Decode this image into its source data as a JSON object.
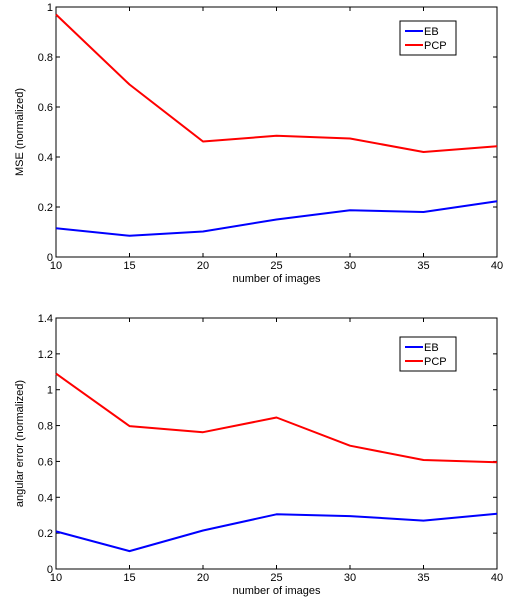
{
  "chart_data": [
    {
      "type": "line",
      "x": [
        10,
        15,
        20,
        25,
        30,
        35,
        40
      ],
      "xlabel": "number of images",
      "ylabel": "MSE (normalized)",
      "xlim": [
        10,
        40
      ],
      "ylim": [
        0,
        1
      ],
      "xticks": [
        "10",
        "15",
        "20",
        "25",
        "30",
        "35",
        "40"
      ],
      "yticks": [
        "0",
        "0.2",
        "0.4",
        "0.6",
        "0.8",
        "1"
      ],
      "grid": false,
      "legend_position": "top-right",
      "series": [
        {
          "name": "EB",
          "color": "#0000ff",
          "values": [
            0.115,
            0.085,
            0.102,
            0.15,
            0.187,
            0.18,
            0.223
          ]
        },
        {
          "name": "PCP",
          "color": "#ff0000",
          "values": [
            0.97,
            0.69,
            0.462,
            0.485,
            0.474,
            0.42,
            0.443
          ]
        }
      ]
    },
    {
      "type": "line",
      "x": [
        10,
        15,
        20,
        25,
        30,
        35,
        40
      ],
      "xlabel": "number of images",
      "ylabel": "angular error (normalized)",
      "xlim": [
        10,
        40
      ],
      "ylim": [
        0,
        1.4
      ],
      "xticks": [
        "10",
        "15",
        "20",
        "25",
        "30",
        "35",
        "40"
      ],
      "yticks": [
        "0",
        "0.2",
        "0.4",
        "0.6",
        "0.8",
        "1",
        "1.2",
        "1.4"
      ],
      "grid": false,
      "legend_position": "top-right",
      "series": [
        {
          "name": "EB",
          "color": "#0000ff",
          "values": [
            0.21,
            0.1,
            0.215,
            0.305,
            0.295,
            0.27,
            0.308
          ]
        },
        {
          "name": "PCP",
          "color": "#ff0000",
          "values": [
            1.09,
            0.797,
            0.763,
            0.845,
            0.688,
            0.608,
            0.595
          ]
        }
      ]
    }
  ]
}
